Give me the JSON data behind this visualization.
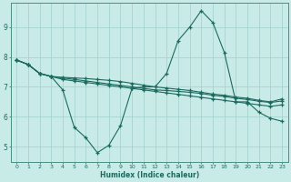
{
  "xlabel": "Humidex (Indice chaleur)",
  "bg_color": "#c8ebe8",
  "grid_color": "#a0cfcb",
  "line_color": "#1a6b5e",
  "xlim": [
    -0.5,
    23.5
  ],
  "ylim": [
    4.5,
    9.8
  ],
  "xticks": [
    0,
    1,
    2,
    3,
    4,
    5,
    6,
    7,
    8,
    9,
    10,
    11,
    12,
    13,
    14,
    15,
    16,
    17,
    18,
    19,
    20,
    21,
    22,
    23
  ],
  "yticks": [
    5,
    6,
    7,
    8,
    9
  ],
  "line1_y": [
    7.9,
    7.75,
    7.45,
    7.35,
    6.9,
    5.65,
    5.3,
    4.8,
    5.05,
    5.7,
    6.95,
    7.0,
    7.0,
    7.45,
    8.55,
    9.0,
    9.55,
    9.15,
    8.15,
    6.5,
    6.5,
    6.15,
    5.95,
    5.85
  ],
  "line2_y": [
    7.9,
    7.75,
    7.45,
    7.35,
    7.25,
    7.2,
    7.15,
    7.1,
    7.05,
    7.0,
    6.95,
    6.9,
    6.85,
    6.8,
    6.75,
    6.7,
    6.65,
    6.6,
    6.55,
    6.5,
    6.45,
    6.4,
    6.35,
    6.4
  ],
  "line3_y": [
    7.9,
    7.75,
    7.45,
    7.35,
    7.3,
    7.25,
    7.2,
    7.15,
    7.1,
    7.05,
    7.0,
    6.95,
    6.9,
    6.88,
    6.85,
    6.82,
    6.78,
    6.72,
    6.68,
    6.62,
    6.58,
    6.52,
    6.48,
    6.53
  ],
  "line4_y": [
    7.9,
    7.75,
    7.45,
    7.35,
    7.32,
    7.3,
    7.28,
    7.25,
    7.22,
    7.18,
    7.12,
    7.06,
    7.0,
    6.96,
    6.92,
    6.88,
    6.82,
    6.76,
    6.72,
    6.66,
    6.62,
    6.55,
    6.5,
    6.6
  ]
}
